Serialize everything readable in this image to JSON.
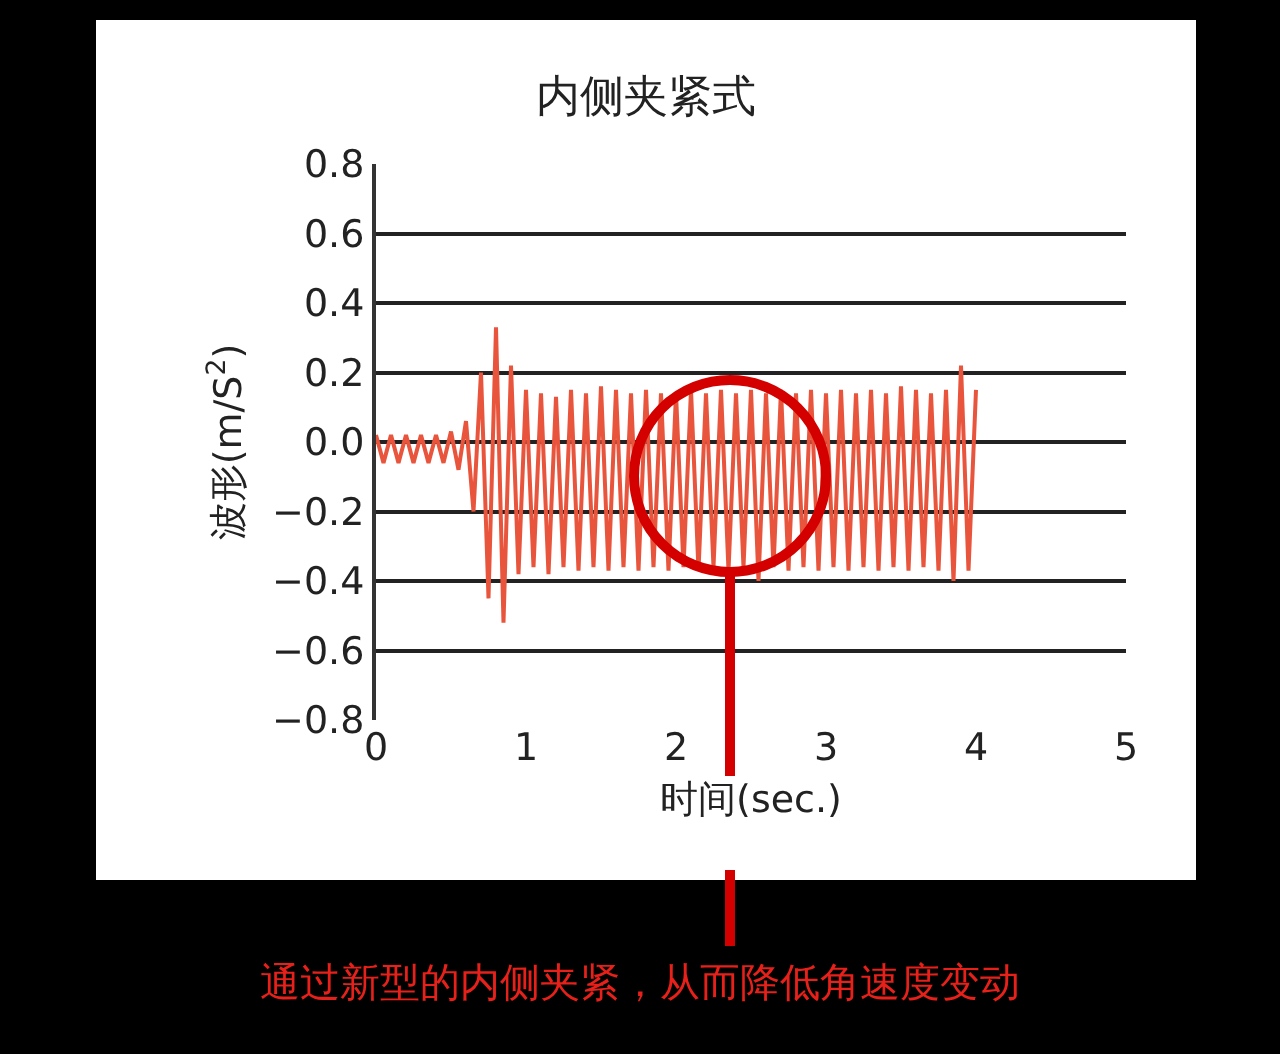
{
  "chart_data": {
    "type": "line",
    "title": "内侧夹紧式",
    "xlabel": "时间(sec.)",
    "ylabel": "波形(m/S$^{2}$)",
    "x": [
      0,
      0.05,
      0.1,
      0.15,
      0.2,
      0.25,
      0.3,
      0.35,
      0.4,
      0.45,
      0.5,
      0.55,
      0.6,
      0.65,
      0.7,
      0.75,
      0.8,
      0.85,
      0.9,
      0.95,
      1,
      1.05,
      1.1,
      1.15,
      1.2,
      1.25,
      1.3,
      1.35,
      1.4,
      1.45,
      1.5,
      1.55,
      1.6,
      1.65,
      1.7,
      1.75,
      1.8,
      1.85,
      1.9,
      1.95,
      2,
      2.05,
      2.1,
      2.15,
      2.2,
      2.25,
      2.3,
      2.35,
      2.4,
      2.45,
      2.5,
      2.55,
      2.6,
      2.65,
      2.7,
      2.75,
      2.8,
      2.85,
      2.9,
      2.95,
      3,
      3.05,
      3.1,
      3.15,
      3.2,
      3.25,
      3.3,
      3.35,
      3.4,
      3.45,
      3.5,
      3.55,
      3.6,
      3.65,
      3.7,
      3.75,
      3.8,
      3.85,
      3.9,
      3.95,
      4
    ],
    "series": [
      {
        "color": "#e8553c",
        "values": [
          0.02,
          -0.06,
          0.02,
          -0.06,
          0.02,
          -0.06,
          0.02,
          -0.06,
          0.02,
          -0.06,
          0.03,
          -0.08,
          0.06,
          -0.2,
          0.2,
          -0.45,
          0.33,
          -0.52,
          0.22,
          -0.38,
          0.15,
          -0.36,
          0.14,
          -0.38,
          0.13,
          -0.36,
          0.15,
          -0.37,
          0.14,
          -0.36,
          0.16,
          -0.37,
          0.15,
          -0.36,
          0.14,
          -0.37,
          0.15,
          -0.36,
          0.14,
          -0.37,
          0.14,
          -0.36,
          0.15,
          -0.37,
          0.14,
          -0.36,
          0.15,
          -0.37,
          0.14,
          -0.36,
          0.15,
          -0.4,
          0.14,
          -0.36,
          0.15,
          -0.37,
          0.14,
          -0.36,
          0.15,
          -0.37,
          0.14,
          -0.36,
          0.15,
          -0.37,
          0.14,
          -0.36,
          0.15,
          -0.37,
          0.14,
          -0.36,
          0.16,
          -0.37,
          0.15,
          -0.36,
          0.14,
          -0.37,
          0.15,
          -0.4,
          0.22,
          -0.37,
          0.15
        ]
      }
    ],
    "xlim": [
      0,
      5
    ],
    "xticks": [
      0,
      1,
      2,
      3,
      4,
      5
    ],
    "ylim": [
      -0.8,
      0.8
    ],
    "yticks": [
      {
        "value": 0.8,
        "label": "0.8"
      },
      {
        "value": 0.6,
        "label": "0.6"
      },
      {
        "value": 0.4,
        "label": "0.4"
      },
      {
        "value": 0.2,
        "label": "0.2"
      },
      {
        "value": 0,
        "label": "0.0"
      },
      {
        "value": -0.2,
        "label": "−0.2"
      },
      {
        "value": -0.4,
        "label": "−0.4"
      },
      {
        "value": -0.6,
        "label": "−0.6"
      },
      {
        "value": -0.8,
        "label": "−0.8"
      }
    ],
    "grid": "y",
    "marker": "none",
    "line_style": "solid",
    "annotations": [
      "通过新型的内侧夹紧，从而降低角速度变动"
    ]
  }
}
